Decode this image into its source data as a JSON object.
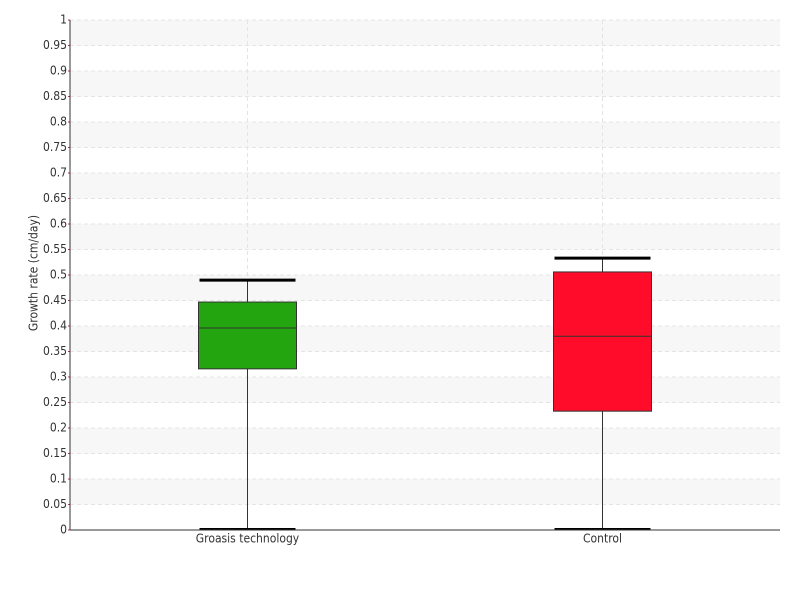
{
  "chart_data": {
    "type": "box",
    "y_label": "Growth rate (cm/day)",
    "categories": [
      "Groasis technology",
      "Control"
    ],
    "boxes": [
      {
        "min": 0,
        "q1": 0.316,
        "median": 0.396,
        "q3": 0.447,
        "max": 0.49,
        "color": "#22a50e"
      },
      {
        "min": 0,
        "q1": 0.233,
        "median": 0.38,
        "q3": 0.506,
        "max": 0.533,
        "color": "#ff0c2a"
      }
    ],
    "ylim": [
      0,
      1
    ],
    "yticks": [
      0,
      0.05,
      0.1,
      0.15,
      0.2,
      0.25,
      0.3,
      0.35,
      0.4,
      0.45,
      0.5,
      0.55,
      0.6,
      0.65,
      0.7,
      0.75,
      0.8,
      0.85,
      0.9,
      0.95,
      1
    ],
    "grid": true
  }
}
